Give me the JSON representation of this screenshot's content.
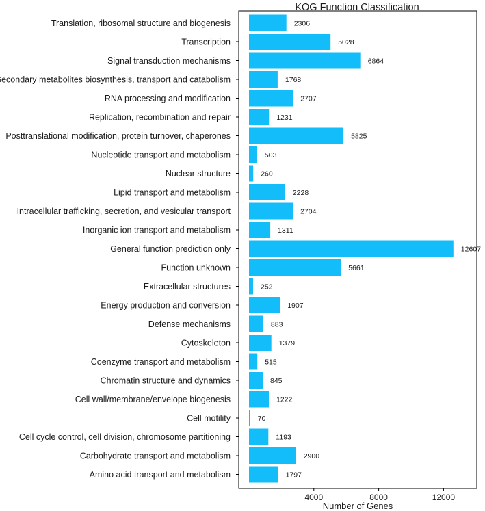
{
  "chart_data": {
    "type": "bar",
    "orientation": "horizontal",
    "title": "KOG Function Classification",
    "xlabel": "Number of Genes",
    "ylabel": "",
    "xlim": [
      0,
      17000
    ],
    "xticks": [
      4000,
      8000,
      12000,
      16000
    ],
    "grid": false,
    "bar_color": "#12BDF9",
    "categories": [
      "Translation, ribosomal structure and biogenesis",
      "Transcription",
      "Signal transduction mechanisms",
      "Secondary metabolites biosynthesis, transport and catabolism",
      "RNA processing and modification",
      "Replication, recombination and repair",
      "Posttranslational modification, protein turnover, chaperones",
      "Nucleotide transport and metabolism",
      "Nuclear structure",
      "Lipid transport and metabolism",
      "Intracellular trafficking, secretion, and vesicular transport",
      "Inorganic ion transport and metabolism",
      "General function prediction only",
      "Function unknown",
      "Extracellular structures",
      "Energy production and conversion",
      "Defense mechanisms",
      "Cytoskeleton",
      "Coenzyme transport and metabolism",
      "Chromatin structure and dynamics",
      "Cell wall/membrane/envelope biogenesis",
      "Cell motility",
      "Cell cycle control, cell division, chromosome partitioning",
      "Carbohydrate transport and metabolism",
      "Amino acid transport and metabolism"
    ],
    "values": [
      2306,
      5028,
      6864,
      1768,
      2707,
      1231,
      5825,
      503,
      260,
      2228,
      2704,
      1311,
      12607,
      5661,
      252,
      1907,
      883,
      1379,
      515,
      845,
      1222,
      70,
      1193,
      2900,
      1797
    ]
  }
}
